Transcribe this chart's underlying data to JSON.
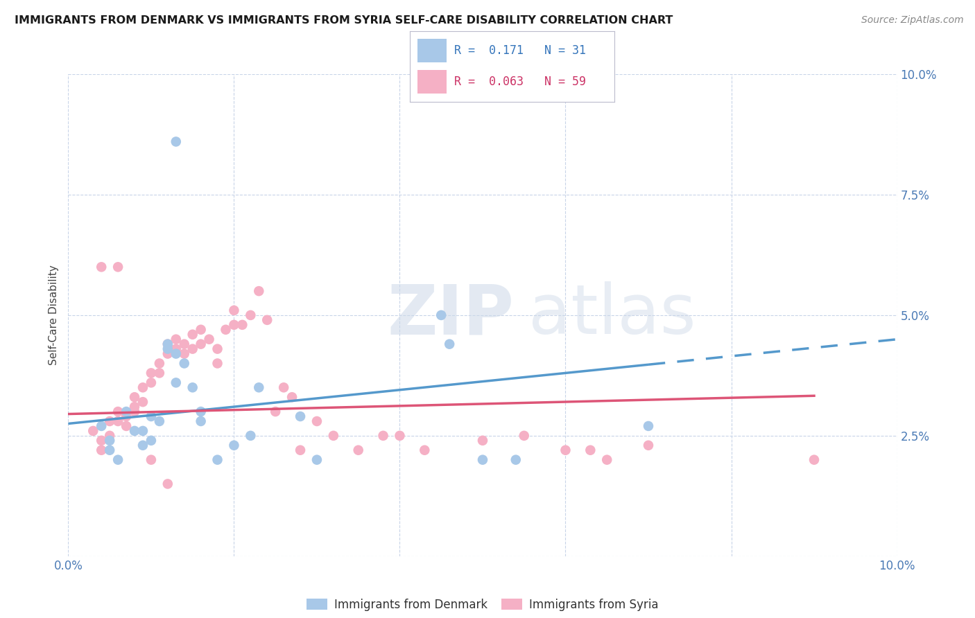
{
  "title": "IMMIGRANTS FROM DENMARK VS IMMIGRANTS FROM SYRIA SELF-CARE DISABILITY CORRELATION CHART",
  "source": "Source: ZipAtlas.com",
  "ylabel": "Self-Care Disability",
  "xlim": [
    0.0,
    0.1
  ],
  "ylim": [
    0.0,
    0.1
  ],
  "denmark_color": "#a8c8e8",
  "syria_color": "#f5b0c5",
  "denmark_line_color": "#5599cc",
  "syria_line_color": "#dd5577",
  "denmark_R": 0.171,
  "syria_R": 0.063,
  "background_color": "#ffffff",
  "grid_color": "#c8d4e8",
  "dk_x": [
    0.004,
    0.005,
    0.005,
    0.006,
    0.007,
    0.008,
    0.009,
    0.009,
    0.01,
    0.01,
    0.011,
    0.012,
    0.012,
    0.013,
    0.013,
    0.014,
    0.015,
    0.016,
    0.016,
    0.018,
    0.02,
    0.022,
    0.023,
    0.028,
    0.03,
    0.045,
    0.046,
    0.05,
    0.054,
    0.07,
    0.013
  ],
  "dk_y": [
    0.027,
    0.024,
    0.022,
    0.02,
    0.03,
    0.026,
    0.023,
    0.026,
    0.024,
    0.029,
    0.028,
    0.044,
    0.043,
    0.042,
    0.036,
    0.04,
    0.035,
    0.03,
    0.028,
    0.02,
    0.023,
    0.025,
    0.035,
    0.029,
    0.02,
    0.05,
    0.044,
    0.02,
    0.02,
    0.027,
    0.086
  ],
  "sy_x": [
    0.003,
    0.004,
    0.004,
    0.005,
    0.005,
    0.006,
    0.006,
    0.007,
    0.007,
    0.008,
    0.008,
    0.009,
    0.009,
    0.01,
    0.01,
    0.011,
    0.011,
    0.012,
    0.012,
    0.013,
    0.013,
    0.014,
    0.014,
    0.015,
    0.015,
    0.016,
    0.016,
    0.017,
    0.018,
    0.018,
    0.019,
    0.02,
    0.02,
    0.021,
    0.022,
    0.023,
    0.024,
    0.025,
    0.026,
    0.027,
    0.028,
    0.03,
    0.032,
    0.035,
    0.038,
    0.04,
    0.043,
    0.05,
    0.055,
    0.06,
    0.063,
    0.065,
    0.07,
    0.09,
    0.004,
    0.006,
    0.008,
    0.01,
    0.012
  ],
  "sy_y": [
    0.026,
    0.024,
    0.022,
    0.028,
    0.025,
    0.03,
    0.028,
    0.029,
    0.027,
    0.033,
    0.031,
    0.035,
    0.032,
    0.038,
    0.036,
    0.04,
    0.038,
    0.044,
    0.042,
    0.045,
    0.043,
    0.044,
    0.042,
    0.046,
    0.043,
    0.047,
    0.044,
    0.045,
    0.043,
    0.04,
    0.047,
    0.051,
    0.048,
    0.048,
    0.05,
    0.055,
    0.049,
    0.03,
    0.035,
    0.033,
    0.022,
    0.028,
    0.025,
    0.022,
    0.025,
    0.025,
    0.022,
    0.024,
    0.025,
    0.022,
    0.022,
    0.02,
    0.023,
    0.02,
    0.06,
    0.06,
    0.03,
    0.02,
    0.015
  ],
  "dk_line_x0": 0.0,
  "dk_line_x_solid_end": 0.07,
  "dk_line_x_end": 0.1,
  "sy_line_x0": 0.0,
  "sy_line_x_end": 0.09,
  "dk_intercept": 0.0275,
  "dk_slope": 0.175,
  "sy_intercept": 0.0295,
  "sy_slope": 0.042
}
